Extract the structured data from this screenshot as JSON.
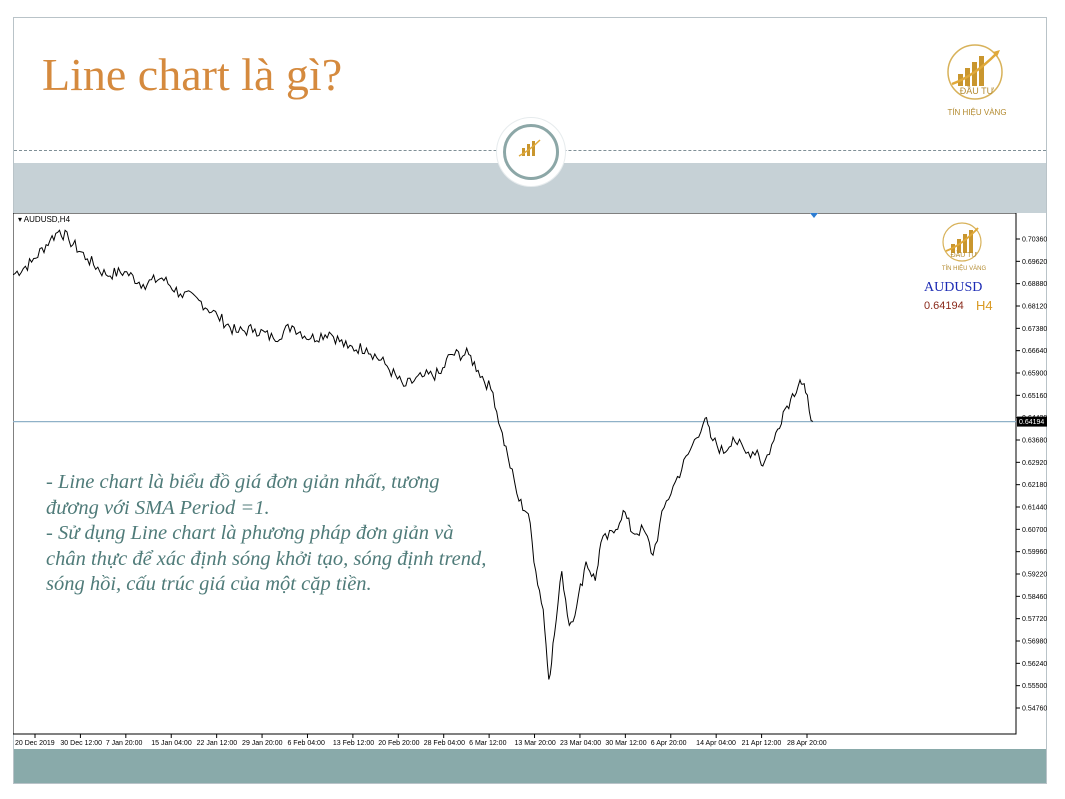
{
  "slide": {
    "title": "Line chart là gì?",
    "logo": {
      "line1": "ĐẦU TƯ",
      "line2": "TÍN HIỆU VÀNG"
    },
    "text": [
      "- Line chart là biểu đồ giá đơn giản nhất, tương đương với SMA Period =1.",
      "- Sử dụng Line chart là phương pháp đơn giản và chân thực để xác định sóng khởi tạo, sóng định trend, sóng hồi, cấu trúc giá của một cặp tiền."
    ],
    "colors": {
      "title": "#d58a3e",
      "text": "#4f7b79",
      "band_gray": "#c6d1d6",
      "band_teal": "#89aaaa"
    }
  },
  "chart_data": {
    "type": "line",
    "header": "AUDUSD,H4",
    "symbol": "AUDUSD",
    "timeframe": "H4",
    "current_price": "0.64194",
    "current_price_value": 0.64194,
    "ylim": [
      0.5439,
      0.7074
    ],
    "y_ticks": [
      "0.70360",
      "0.69620",
      "0.68880",
      "0.68120",
      "0.67380",
      "0.66640",
      "0.65900",
      "0.65160",
      "0.64420",
      "0.63680",
      "0.62920",
      "0.62180",
      "0.61440",
      "0.60700",
      "0.59960",
      "0.59220",
      "0.58460",
      "0.57720",
      "0.56980",
      "0.56240",
      "0.55500",
      "0.54760"
    ],
    "x_ticks": [
      "20 Dec 2019",
      "30 Dec 12:00",
      "7 Jan 20:00",
      "15 Jan 04:00",
      "22 Jan 12:00",
      "29 Jan 20:00",
      "6 Feb 04:00",
      "13 Feb 12:00",
      "20 Feb 20:00",
      "28 Feb 04:00",
      "6 Mar 12:00",
      "13 Mar 20:00",
      "23 Mar 04:00",
      "30 Mar 12:00",
      "6 Apr 20:00",
      "14 Apr 04:00",
      "21 Apr 12:00",
      "28 Apr 20:00"
    ],
    "series": [
      {
        "color": "#000000",
        "points": [
          [
            0,
            0.688
          ],
          [
            1,
            0.692
          ],
          [
            2,
            0.699
          ],
          [
            2.5,
            0.702
          ],
          [
            3,
            0.699
          ],
          [
            4,
            0.693
          ],
          [
            5,
            0.688
          ],
          [
            6,
            0.689
          ],
          [
            7,
            0.685
          ],
          [
            8,
            0.687
          ],
          [
            9,
            0.682
          ],
          [
            10,
            0.68
          ],
          [
            11,
            0.675
          ],
          [
            12,
            0.67
          ],
          [
            13,
            0.671
          ],
          [
            14,
            0.668
          ],
          [
            15,
            0.672
          ],
          [
            16,
            0.668
          ],
          [
            17,
            0.67
          ],
          [
            18,
            0.665
          ],
          [
            19,
            0.665
          ],
          [
            20,
            0.66
          ],
          [
            21,
            0.653
          ],
          [
            22,
            0.656
          ],
          [
            23,
            0.657
          ],
          [
            23.5,
            0.663
          ],
          [
            24.5,
            0.663
          ],
          [
            25,
            0.658
          ],
          [
            25.8,
            0.651
          ],
          [
            26.2,
            0.64
          ],
          [
            26.6,
            0.631
          ],
          [
            27.2,
            0.617
          ],
          [
            27.7,
            0.613
          ],
          [
            28.1,
            0.595
          ],
          [
            28.5,
            0.583
          ],
          [
            28.8,
            0.561
          ],
          [
            29.1,
            0.575
          ],
          [
            29.5,
            0.595
          ],
          [
            29.9,
            0.578
          ],
          [
            30.3,
            0.584
          ],
          [
            30.8,
            0.598
          ],
          [
            31.3,
            0.592
          ],
          [
            31.6,
            0.604
          ],
          [
            32.3,
            0.607
          ],
          [
            32.8,
            0.614
          ],
          [
            33.3,
            0.607
          ],
          [
            33.9,
            0.608
          ],
          [
            34.4,
            0.6
          ],
          [
            35.0,
            0.615
          ],
          [
            35.6,
            0.623
          ],
          [
            36.4,
            0.633
          ],
          [
            37.2,
            0.643
          ],
          [
            37.5,
            0.637
          ],
          [
            38.2,
            0.632
          ],
          [
            38.7,
            0.637
          ],
          [
            39.4,
            0.632
          ],
          [
            40.0,
            0.633
          ],
          [
            40.3,
            0.628
          ],
          [
            40.9,
            0.636
          ],
          [
            41.4,
            0.645
          ],
          [
            41.8,
            0.649
          ],
          [
            42.3,
            0.655
          ],
          [
            42.6,
            0.651
          ],
          [
            43.0,
            0.642
          ]
        ]
      }
    ],
    "hline": 0.64194
  }
}
